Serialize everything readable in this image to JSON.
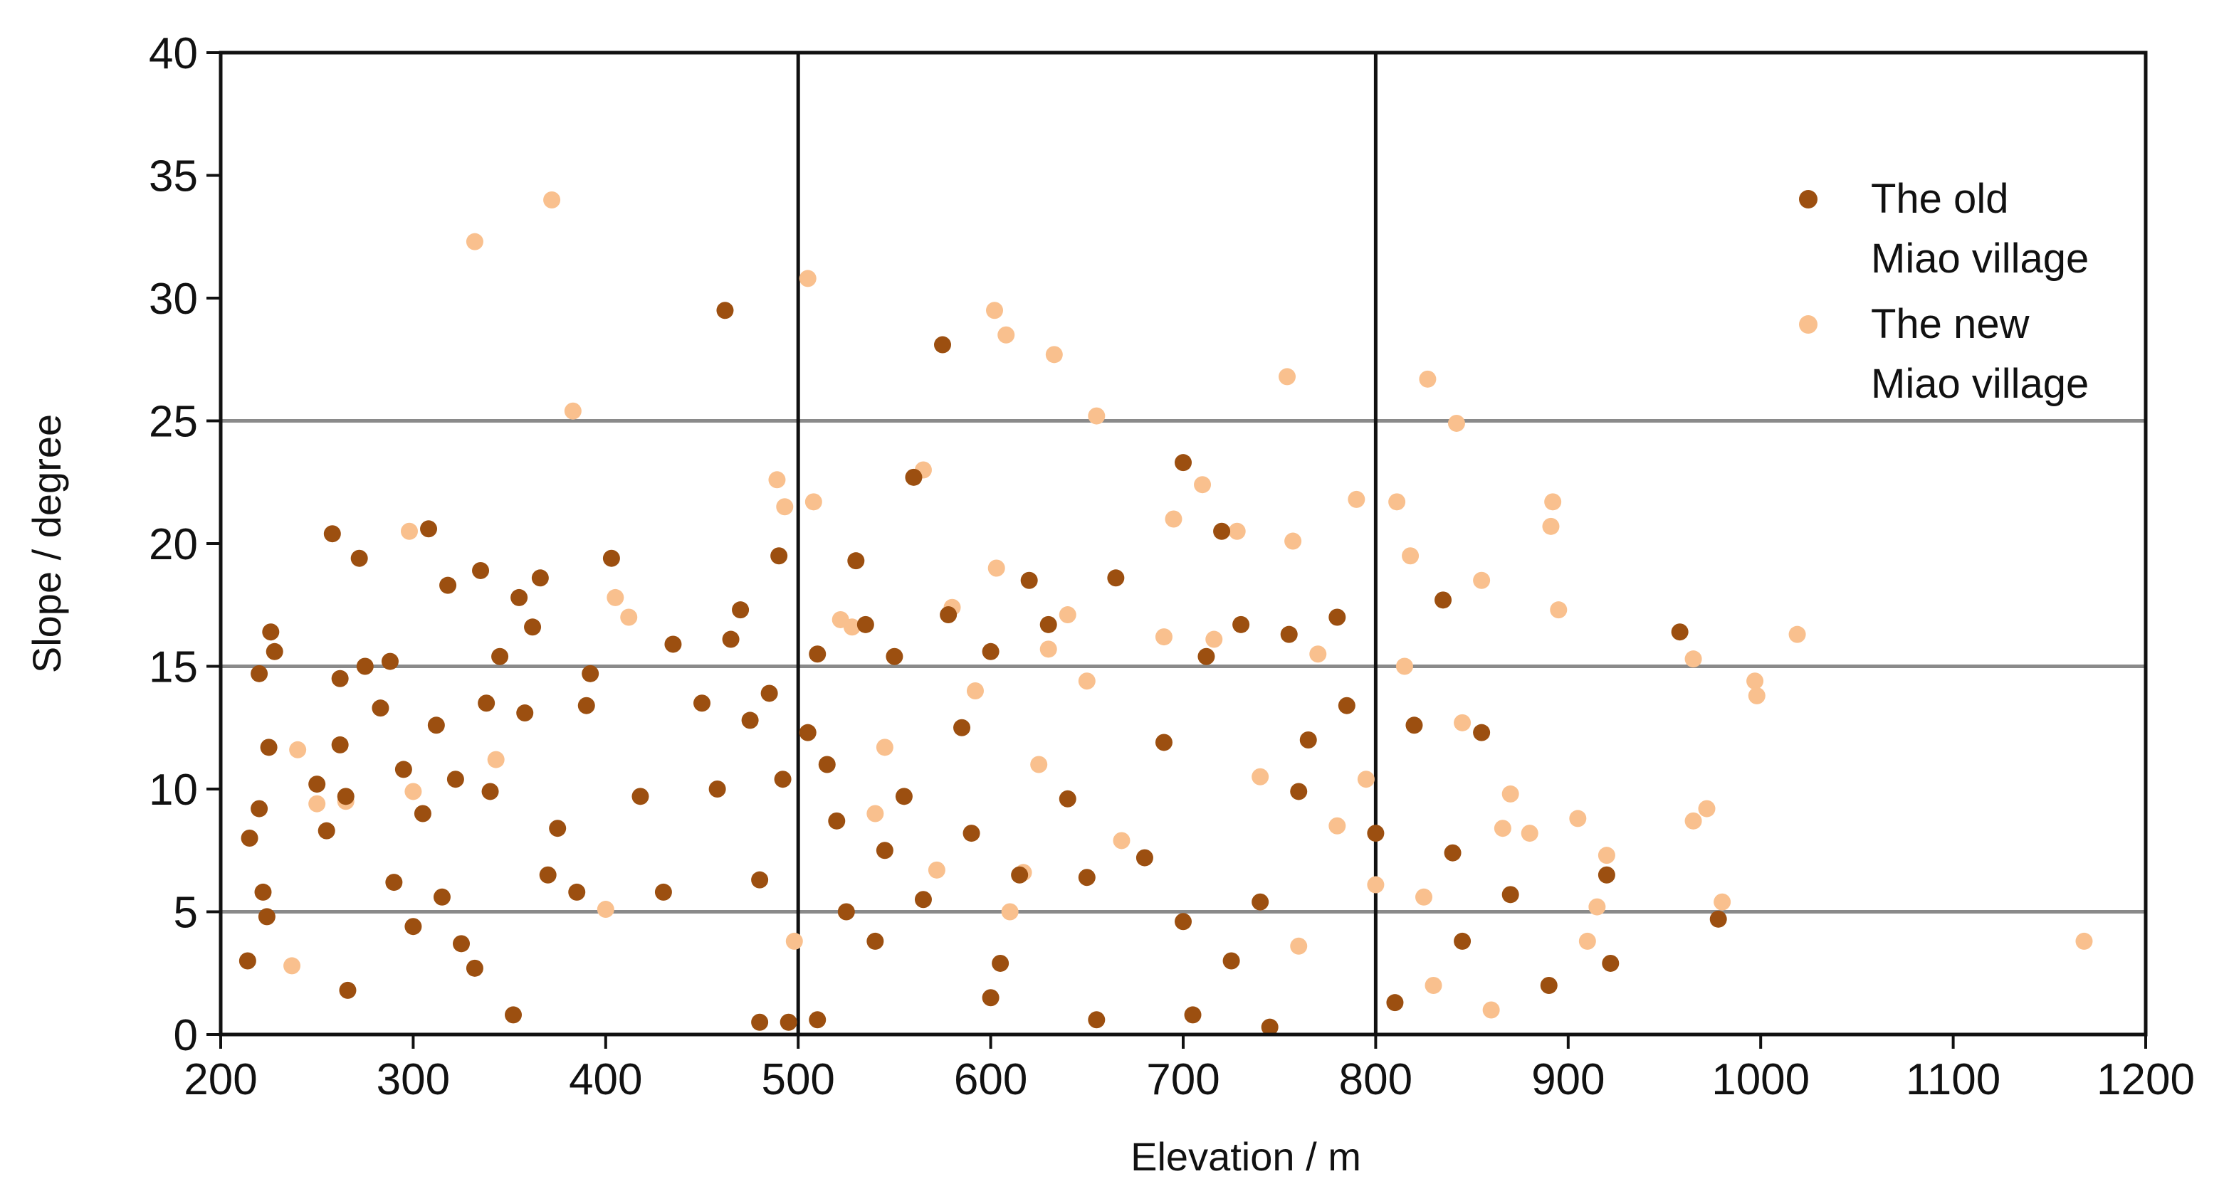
{
  "chart_data": {
    "type": "scatter",
    "xlabel": "Elevation / m",
    "ylabel": "Slope / degree",
    "xlim": [
      200,
      1200
    ],
    "ylim": [
      0,
      40
    ],
    "xticks": [
      200,
      300,
      400,
      500,
      600,
      700,
      800,
      900,
      1000,
      1100,
      1200
    ],
    "yticks": [
      0,
      5,
      10,
      15,
      20,
      25,
      30,
      35,
      40
    ],
    "grid_y": [
      5,
      15,
      25
    ],
    "grid_x": [
      500,
      800
    ],
    "legend": "upper right",
    "series": [
      {
        "name": "The old\nMiao village",
        "color": "#9c4f10",
        "x": [
          215,
          214,
          220,
          222,
          225,
          226,
          228,
          224,
          220,
          250,
          255,
          258,
          262,
          262,
          265,
          266,
          272,
          275,
          283,
          288,
          290,
          295,
          300,
          305,
          308,
          312,
          315,
          318,
          322,
          325,
          332,
          335,
          338,
          340,
          345,
          352,
          355,
          358,
          362,
          366,
          370,
          375,
          385,
          390,
          392,
          403,
          418,
          430,
          435,
          450,
          458,
          462,
          465,
          470,
          475,
          480,
          485,
          490,
          492,
          495,
          505,
          510,
          515,
          520,
          525,
          530,
          535,
          540,
          545,
          550,
          555,
          560,
          565,
          575,
          578,
          585,
          590,
          600,
          605,
          615,
          620,
          630,
          640,
          650,
          655,
          665,
          680,
          690,
          700,
          705,
          712,
          720,
          725,
          730,
          740,
          745,
          755,
          760,
          765,
          780,
          785,
          800,
          810,
          820,
          835,
          840,
          845,
          855,
          870,
          890,
          920,
          922,
          958,
          978,
          480,
          510,
          600,
          700
        ],
        "values": [
          8,
          3,
          14.7,
          5.8,
          11.7,
          16.4,
          15.6,
          4.8,
          9.2,
          10.2,
          8.3,
          20.4,
          14.5,
          11.8,
          9.7,
          1.8,
          19.4,
          15,
          13.3,
          15.2,
          6.2,
          10.8,
          4.4,
          9,
          20.6,
          12.6,
          5.6,
          18.3,
          10.4,
          3.7,
          2.7,
          18.9,
          13.5,
          9.9,
          15.4,
          0.8,
          17.8,
          13.1,
          16.6,
          18.6,
          6.5,
          8.4,
          5.8,
          13.4,
          14.7,
          19.4,
          9.7,
          5.8,
          15.9,
          13.5,
          10,
          29.5,
          16.1,
          17.3,
          12.8,
          6.3,
          13.9,
          19.5,
          10.4,
          0.5,
          12.3,
          15.5,
          11,
          8.7,
          5,
          19.3,
          16.7,
          3.8,
          7.5,
          15.4,
          9.7,
          22.7,
          5.5,
          28.1,
          17.1,
          12.5,
          8.2,
          15.6,
          2.9,
          6.5,
          18.5,
          16.7,
          9.6,
          6.4,
          0.6,
          18.6,
          7.2,
          11.9,
          23.3,
          0.8,
          15.4,
          20.5,
          3,
          16.7,
          5.4,
          0.3,
          16.3,
          9.9,
          12,
          17,
          13.4,
          8.2,
          1.3,
          12.6,
          17.7,
          7.4,
          3.8,
          12.3,
          5.7,
          2,
          6.5,
          2.9,
          16.4,
          4.7,
          0.5,
          0.6,
          1.5,
          4.6
        ]
      },
      {
        "name": "The new\nMiao village",
        "color": "#f9c08e",
        "x": [
          237,
          240,
          250,
          265,
          298,
          300,
          332,
          343,
          372,
          383,
          405,
          412,
          400,
          489,
          493,
          498,
          505,
          508,
          522,
          528,
          545,
          565,
          572,
          580,
          592,
          602,
          603,
          608,
          617,
          625,
          630,
          633,
          640,
          650,
          655,
          668,
          690,
          695,
          710,
          716,
          728,
          740,
          754,
          757,
          770,
          780,
          790,
          795,
          800,
          811,
          815,
          818,
          825,
          827,
          842,
          845,
          855,
          866,
          870,
          880,
          891,
          892,
          895,
          905,
          910,
          920,
          915,
          965,
          965,
          972,
          980,
          997,
          998,
          1019,
          1168,
          830,
          760,
          860,
          540,
          610
        ],
        "values": [
          2.8,
          11.6,
          9.4,
          9.5,
          20.5,
          9.9,
          32.3,
          11.2,
          34,
          25.4,
          17.8,
          17,
          5.1,
          22.6,
          21.5,
          3.8,
          30.8,
          21.7,
          16.9,
          16.6,
          11.7,
          23,
          6.7,
          17.4,
          14,
          29.5,
          19,
          28.5,
          6.6,
          11,
          15.7,
          27.7,
          17.1,
          14.4,
          25.2,
          7.9,
          16.2,
          21,
          22.4,
          16.1,
          20.5,
          10.5,
          26.8,
          20.1,
          15.5,
          8.5,
          21.8,
          10.4,
          6.1,
          21.7,
          15,
          19.5,
          5.6,
          26.7,
          24.9,
          12.7,
          18.5,
          8.4,
          9.8,
          8.2,
          20.7,
          21.7,
          17.3,
          8.8,
          3.8,
          7.3,
          5.2,
          15.3,
          8.7,
          9.2,
          5.4,
          14.4,
          13.8,
          16.3,
          3.8,
          2,
          3.6,
          1,
          9,
          5
        ]
      }
    ]
  }
}
